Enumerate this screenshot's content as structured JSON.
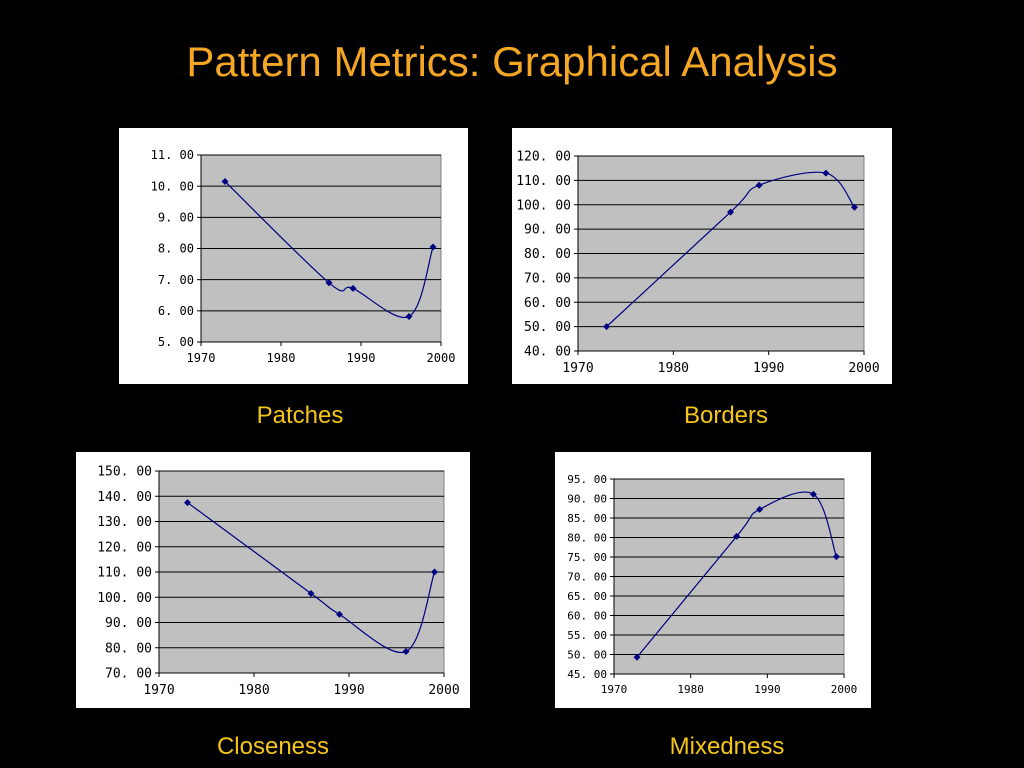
{
  "slide": {
    "title": "Pattern Metrics: Graphical Analysis",
    "colors": {
      "background": "#000000",
      "title": "#f5a623",
      "caption": "#f5c518",
      "plot_area": "#c0c0c0",
      "series_line": "#000080"
    }
  },
  "chart_data": [
    {
      "type": "line",
      "caption": "Patches",
      "x": [
        1973,
        1986,
        1989,
        1996,
        1999
      ],
      "values": [
        10.15,
        6.9,
        6.72,
        5.82,
        8.05
      ],
      "xlim": [
        1970,
        2000
      ],
      "xticks": [
        1970,
        1980,
        1990,
        2000
      ],
      "ylim": [
        5,
        11
      ],
      "yticks": [
        "5. 00",
        "6. 00",
        "7. 00",
        "8. 00",
        "9. 00",
        "10. 00",
        "11. 00"
      ],
      "grid": true,
      "smoothed": true,
      "marker": "diamond"
    },
    {
      "type": "line",
      "caption": "Borders",
      "x": [
        1973,
        1986,
        1989,
        1996,
        1999
      ],
      "values": [
        50,
        97,
        108,
        113,
        99
      ],
      "xlim": [
        1970,
        2000
      ],
      "xticks": [
        1970,
        1980,
        1990,
        2000
      ],
      "ylim": [
        40,
        120
      ],
      "yticks": [
        "40. 00",
        "50. 00",
        "60. 00",
        "70. 00",
        "80. 00",
        "90. 00",
        "100. 00",
        "110. 00",
        "120. 00"
      ],
      "grid": true,
      "smoothed": true,
      "marker": "diamond"
    },
    {
      "type": "line",
      "caption": "Closeness",
      "x": [
        1973,
        1986,
        1989,
        1996,
        1999
      ],
      "values": [
        137.5,
        101.5,
        93.2,
        78.5,
        110
      ],
      "xlim": [
        1970,
        2000
      ],
      "xticks": [
        1970,
        1980,
        1990,
        2000
      ],
      "ylim": [
        70,
        150
      ],
      "yticks": [
        "70. 00",
        "80. 00",
        "90. 00",
        "100. 00",
        "110. 00",
        "120. 00",
        "130. 00",
        "140. 00",
        "150. 00"
      ],
      "grid": true,
      "smoothed": true,
      "marker": "diamond"
    },
    {
      "type": "line",
      "caption": "Mixedness",
      "x": [
        1973,
        1986,
        1989,
        1996,
        1999
      ],
      "values": [
        49.3,
        80.3,
        87.2,
        91.1,
        75.1
      ],
      "xlim": [
        1970,
        2000
      ],
      "xticks": [
        1970,
        1980,
        1990,
        2000
      ],
      "ylim": [
        45,
        95
      ],
      "yticks": [
        "45. 00",
        "50. 00",
        "55. 00",
        "60. 00",
        "65. 00",
        "70. 00",
        "75. 00",
        "80. 00",
        "85. 00",
        "90. 00",
        "95. 00"
      ],
      "grid": true,
      "smoothed": true,
      "marker": "diamond"
    }
  ]
}
